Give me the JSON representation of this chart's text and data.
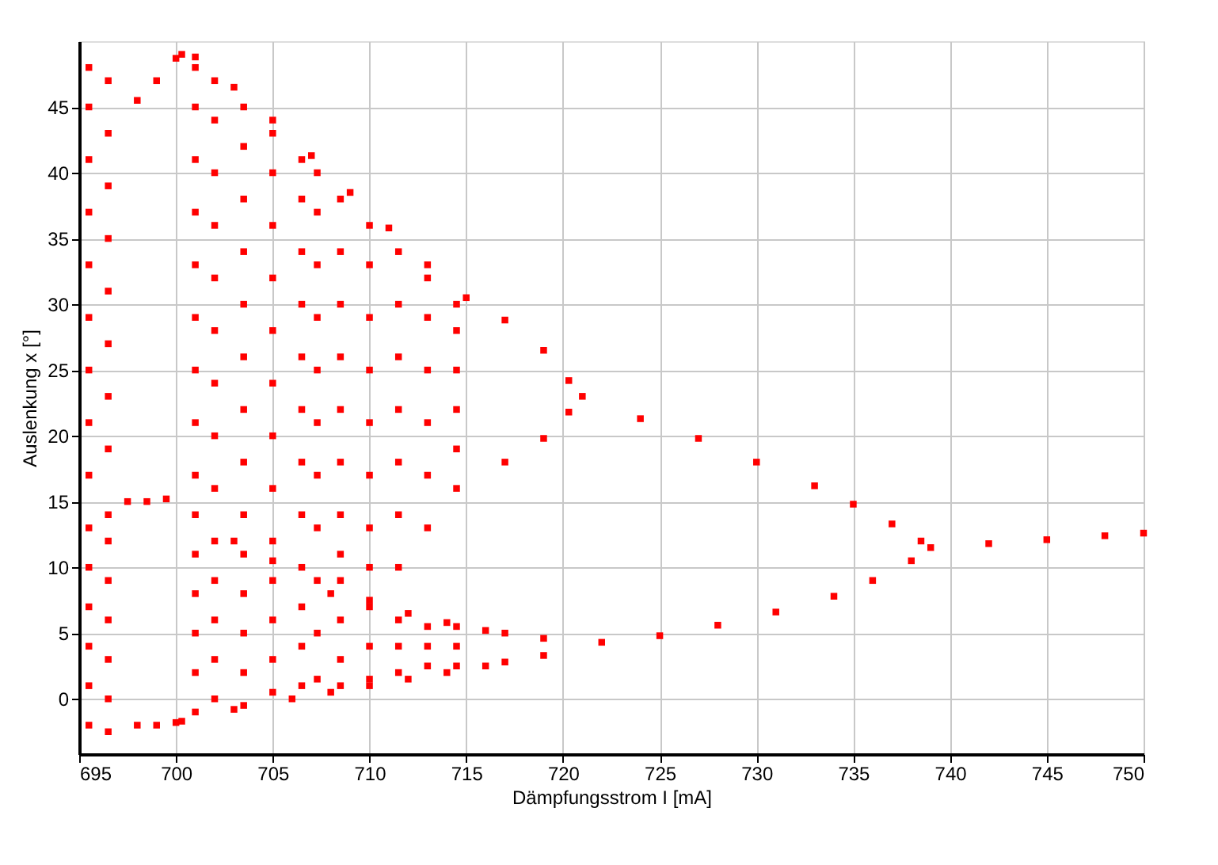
{
  "chart_data": {
    "type": "scatter",
    "xlabel": "Dämpfungsstrom I [mA]",
    "ylabel": "Auslenkung x [°]",
    "xlim": [
      695,
      750
    ],
    "ylim": [
      -4.2,
      50
    ],
    "xticks": [
      695,
      700,
      705,
      710,
      715,
      720,
      725,
      730,
      735,
      740,
      745,
      750
    ],
    "yticks": [
      0,
      5,
      10,
      15,
      20,
      25,
      30,
      35,
      40,
      45
    ],
    "grid": true,
    "marker": "square",
    "series": [
      {
        "color": "#ff0000",
        "x": [
          739,
          742,
          745,
          748,
          750,
          721,
          724,
          727,
          730,
          733,
          735,
          737,
          738.5,
          722,
          725,
          728,
          731,
          734,
          736,
          738,
          717,
          719,
          720.3,
          717,
          719,
          720.3,
          717,
          719,
          717,
          719,
          700.3,
          701,
          703,
          705,
          707,
          709,
          711,
          713,
          715,
          700.3,
          703,
          706,
          708,
          710,
          712,
          714,
          716,
          703,
          705,
          708,
          710,
          712,
          714,
          716,
          698,
          699,
          700,
          697.5,
          698.5,
          699.5,
          698,
          699,
          700
        ],
        "values": [
          11.5,
          11.8,
          12.1,
          12.4,
          12.6,
          23,
          21.3,
          19.8,
          18,
          16.2,
          14.8,
          13.3,
          12,
          4.3,
          4.8,
          5.6,
          6.6,
          7.8,
          9,
          10.5,
          28.8,
          26.5,
          24.2,
          18,
          19.8,
          21.8,
          5,
          4.6,
          2.8,
          3.3,
          49,
          48.8,
          46.5,
          44,
          41.3,
          38.5,
          35.8,
          33,
          30.5,
          -1.7,
          -0.8,
          0,
          0.5,
          1,
          1.5,
          2,
          2.5,
          12,
          10.5,
          8,
          7.5,
          6.5,
          5.8,
          5.2,
          45.5,
          47,
          48.7,
          15,
          15,
          15.2,
          -2,
          -2,
          -1.8
        ]
      },
      {
        "color": "#ff0000",
        "x": [
          695.5,
          695.5,
          695.5,
          695.5,
          695.5,
          695.5,
          695.5,
          695.5,
          695.5,
          695.5,
          695.5,
          695.5,
          695.5,
          695.5,
          695.5,
          696.5,
          696.5,
          696.5,
          696.5,
          696.5,
          696.5,
          696.5,
          696.5,
          696.5,
          696.5,
          696.5,
          696.5,
          696.5,
          696.5,
          696.5,
          701,
          701,
          701,
          701,
          701,
          701,
          701,
          701,
          701,
          701,
          701,
          701,
          701,
          701,
          701,
          702,
          702,
          702,
          702,
          702,
          702,
          702,
          702,
          702,
          702,
          702,
          702,
          702,
          702,
          703.5,
          703.5,
          703.5,
          703.5,
          703.5,
          703.5,
          703.5,
          703.5,
          703.5,
          703.5,
          703.5,
          703.5,
          703.5,
          703.5,
          705,
          705,
          705,
          705,
          705,
          705,
          705,
          705,
          705,
          705,
          705,
          705,
          705,
          706.5,
          706.5,
          706.5,
          706.5,
          706.5,
          706.5,
          706.5,
          706.5,
          706.5,
          706.5,
          706.5,
          706.5,
          707.3,
          707.3,
          707.3,
          707.3,
          707.3,
          707.3,
          707.3,
          707.3,
          707.3,
          707.3,
          707.3,
          708.5,
          708.5,
          708.5,
          708.5,
          708.5,
          708.5,
          708.5,
          708.5,
          708.5,
          708.5,
          708.5,
          708.5,
          710,
          710,
          710,
          710,
          710,
          710,
          710,
          710,
          710,
          710,
          710,
          711.5,
          711.5,
          711.5,
          711.5,
          711.5,
          711.5,
          711.5,
          711.5,
          711.5,
          711.5,
          713,
          713,
          713,
          713,
          713,
          713,
          713,
          713,
          713,
          714.5,
          714.5,
          714.5,
          714.5,
          714.5,
          714.5,
          714.5,
          714.5,
          714.5
        ],
        "values": [
          -2,
          1,
          4,
          7,
          10,
          13,
          17,
          21,
          25,
          29,
          33,
          37,
          41,
          45,
          48,
          -2.5,
          0,
          3,
          6,
          9,
          12,
          14,
          19,
          23,
          27,
          31,
          35,
          39,
          43,
          47,
          -1,
          2,
          5,
          8,
          11,
          14,
          17,
          21,
          25,
          29,
          33,
          37,
          41,
          45,
          48,
          0,
          3,
          6,
          9,
          12,
          16,
          20,
          24,
          28,
          32,
          36,
          40,
          44,
          47,
          -0.5,
          2,
          5,
          8,
          11,
          14,
          18,
          22,
          26,
          30,
          34,
          38,
          42,
          45,
          0.5,
          3,
          6,
          9,
          12,
          16,
          20,
          24,
          28,
          32,
          36,
          40,
          43,
          1,
          4,
          7,
          10,
          14,
          18,
          22,
          26,
          30,
          34,
          38,
          41,
          1.5,
          5,
          9,
          13,
          17,
          21,
          25,
          29,
          33,
          37,
          40,
          1,
          3,
          6,
          9,
          11,
          14,
          18,
          22,
          26,
          30,
          34,
          38,
          1.5,
          4,
          7,
          10,
          13,
          17,
          21,
          25,
          29,
          33,
          36,
          2,
          4,
          6,
          10,
          14,
          18,
          22,
          26,
          30,
          34,
          2.5,
          4,
          5.5,
          13,
          17,
          21,
          25,
          29,
          32,
          2.5,
          4,
          5.5,
          16,
          19,
          22,
          25,
          28,
          30
        ]
      }
    ]
  }
}
